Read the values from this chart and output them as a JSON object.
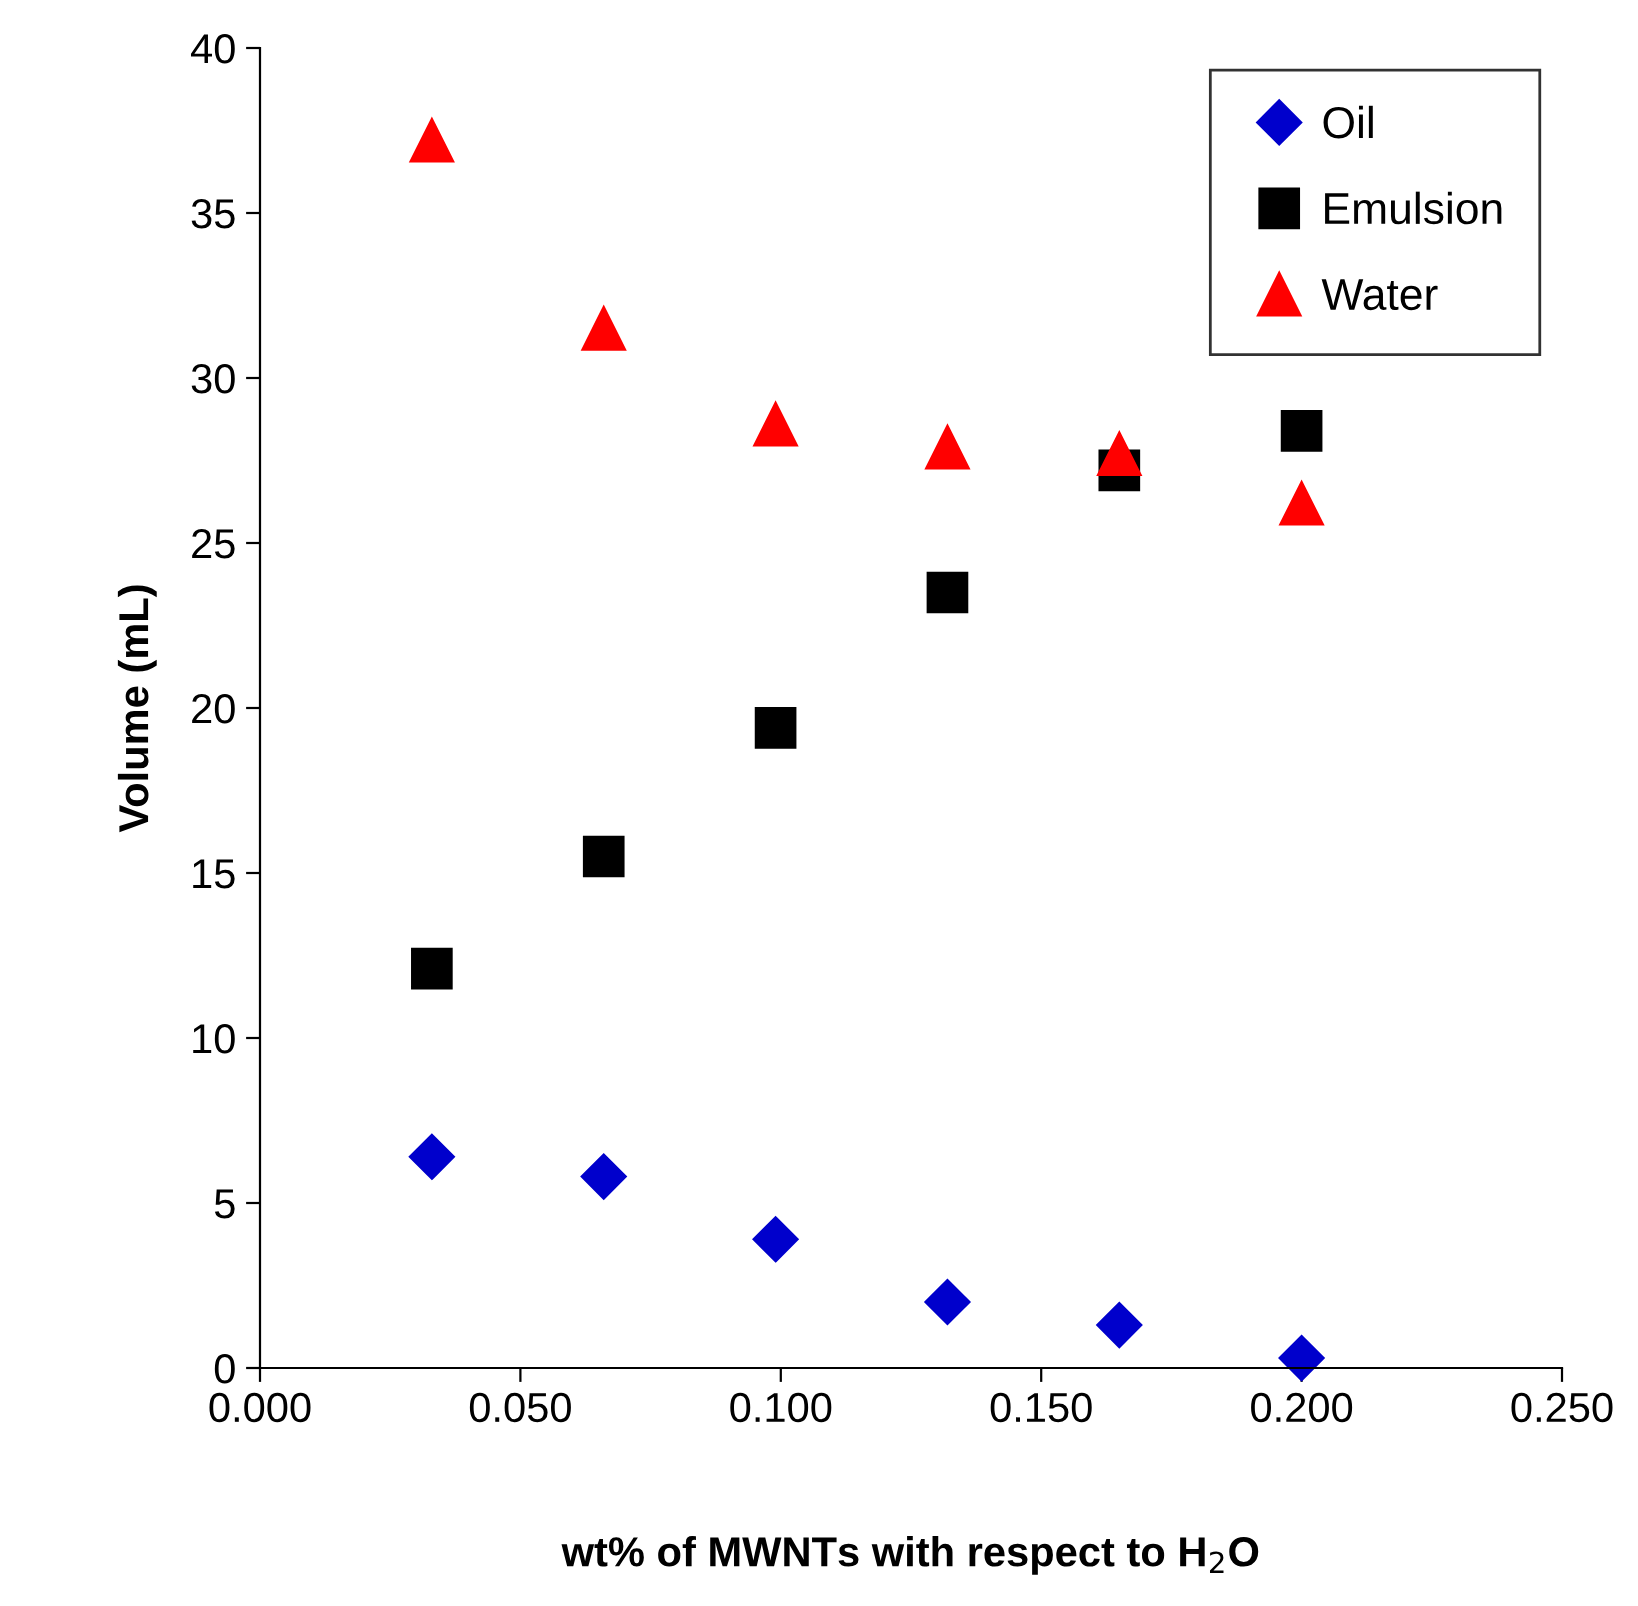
{
  "chart_data": {
    "type": "scatter",
    "xlabel": "wt% of MWNTs with respect to H$_{2}$O",
    "ylabel": "Volume (mL)",
    "xlim": [
      0,
      0.25
    ],
    "ylim": [
      0,
      40
    ],
    "xticks": [
      {
        "value": 0,
        "label": "0.000"
      },
      {
        "value": 0.05,
        "label": "0.050"
      },
      {
        "value": 0.1,
        "label": "0.100"
      },
      {
        "value": 0.15,
        "label": "0.150"
      },
      {
        "value": 0.2,
        "label": "0.200"
      },
      {
        "value": 0.25,
        "label": "0.250"
      }
    ],
    "yticks": [
      0,
      5,
      10,
      15,
      20,
      25,
      30,
      35,
      40
    ],
    "grid": false,
    "legend": "top right",
    "series": [
      {
        "name": "Oil",
        "color": "#0000cc",
        "marker": "diamond",
        "x": [
          0.033,
          0.066,
          0.099,
          0.132,
          0.165,
          0.2
        ],
        "values": [
          6.4,
          5.8,
          3.9,
          2.0,
          1.3,
          0.3
        ]
      },
      {
        "name": "Emulsion",
        "color": "#000000",
        "marker": "square",
        "x": [
          0.033,
          0.066,
          0.099,
          0.132,
          0.165,
          0.2
        ],
        "values": [
          12.1,
          15.5,
          19.4,
          23.5,
          27.2,
          28.4
        ]
      },
      {
        "name": "Water",
        "color": "#ff0000",
        "marker": "triangle",
        "x": [
          0.033,
          0.066,
          0.099,
          0.132,
          0.165,
          0.2
        ],
        "values": [
          37.2,
          31.5,
          28.6,
          27.9,
          27.7,
          26.2
        ]
      }
    ]
  }
}
